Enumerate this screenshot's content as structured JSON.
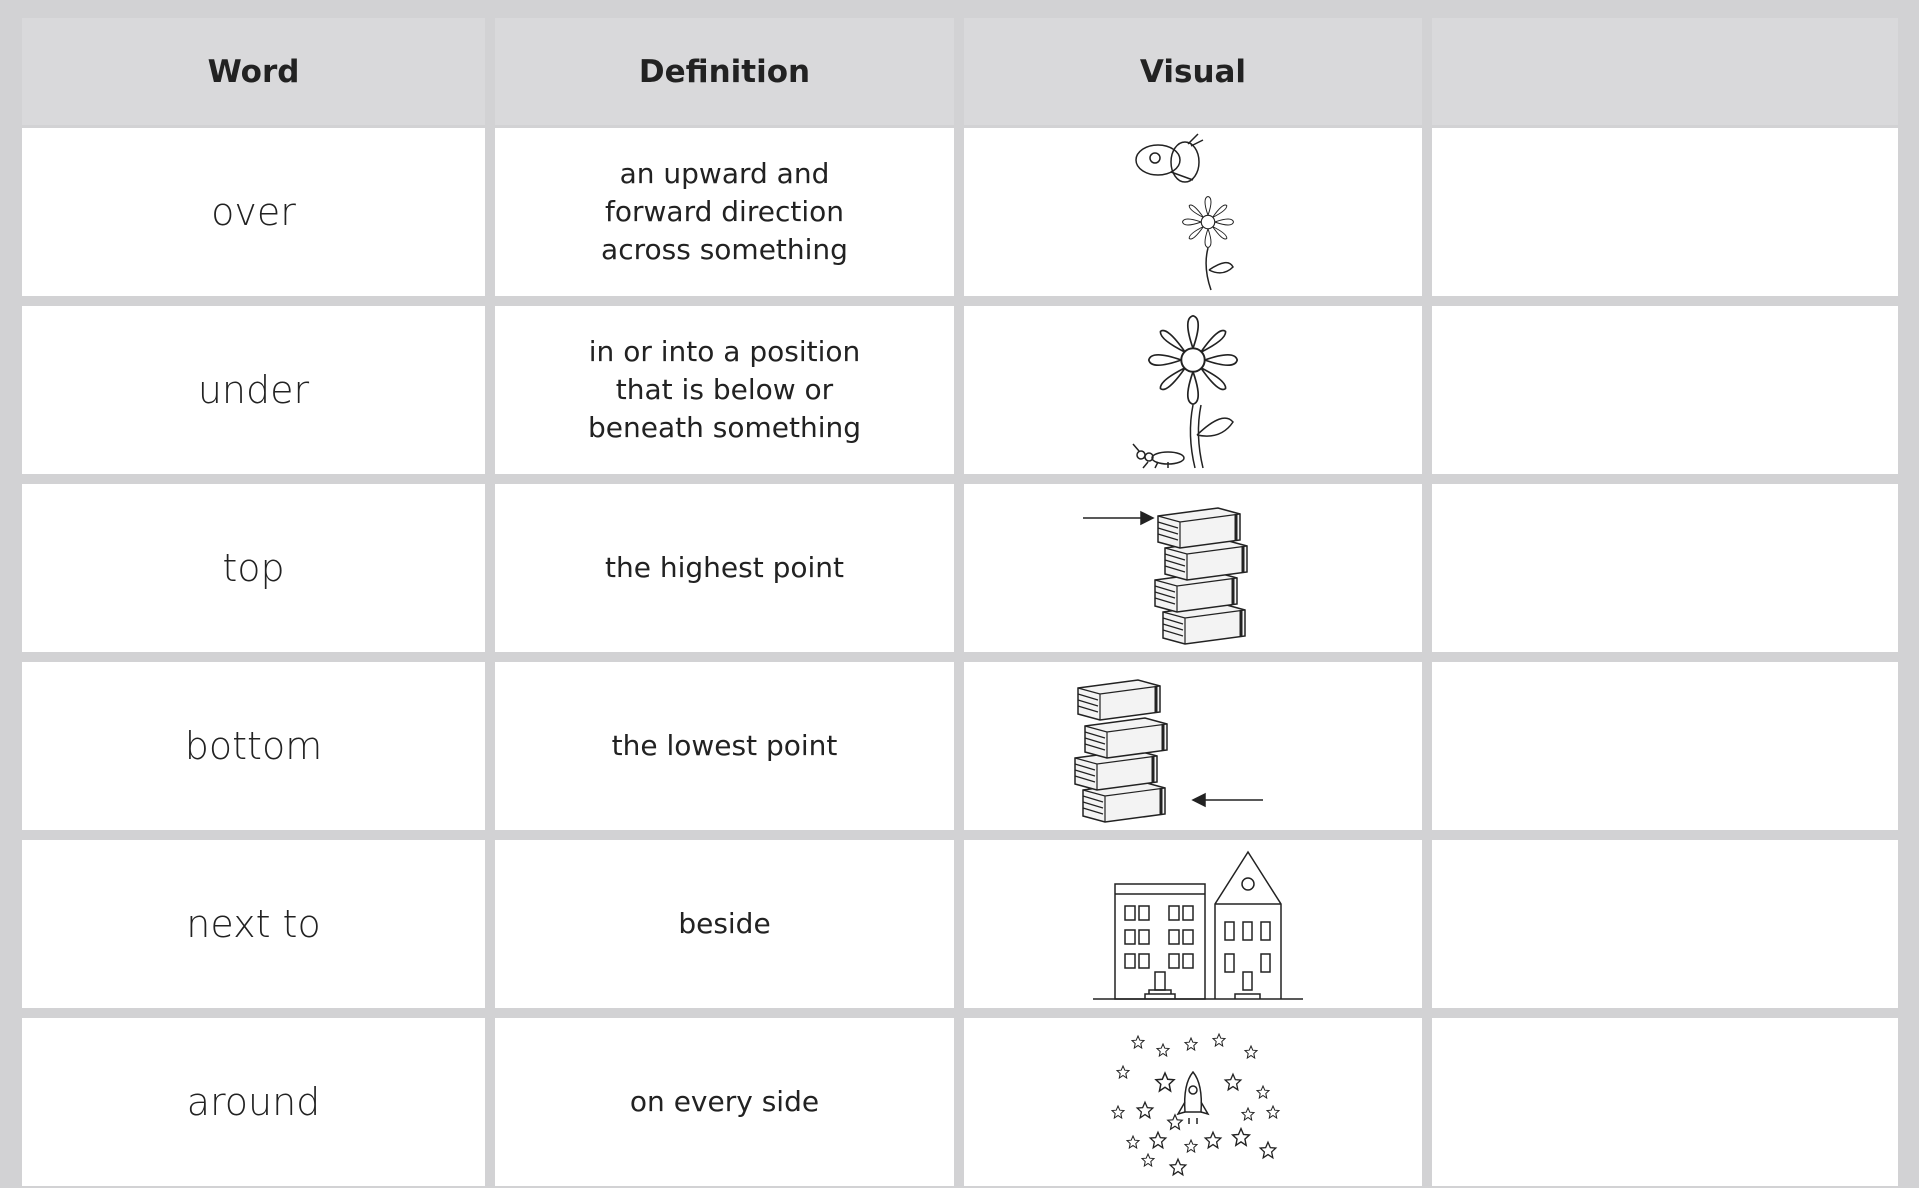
{
  "table": {
    "header": [
      "Word",
      "Definition",
      "Visual"
    ],
    "rows": [
      [
        "over",
        "an upward and forward direction across something"
      ],
      [
        "under",
        "in or into a position that is below or beneath something"
      ],
      [
        "top",
        "the highest point"
      ],
      [
        "bottom",
        "the lowest point"
      ],
      [
        "next to",
        "beside"
      ],
      [
        "around",
        "on every side"
      ]
    ]
  }
}
